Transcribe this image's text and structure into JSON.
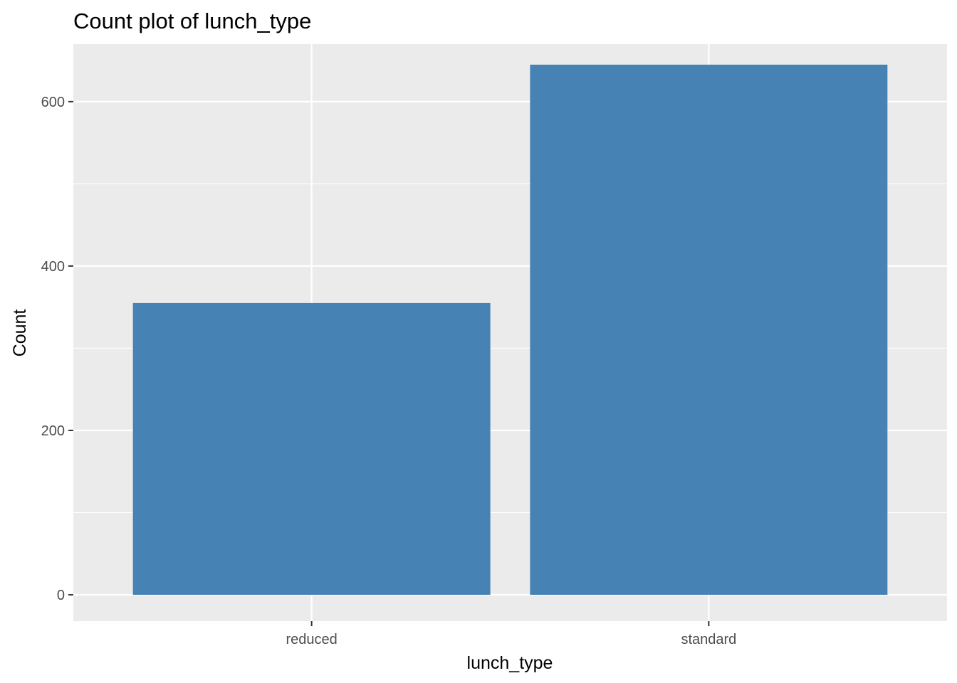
{
  "chart_data": {
    "type": "bar",
    "title": "Count plot of lunch_type",
    "xlabel": "lunch_type",
    "ylabel": "Count",
    "categories": [
      "reduced",
      "standard"
    ],
    "values": [
      355,
      645
    ],
    "ylim": [
      -32,
      670
    ],
    "yticks": [
      0,
      200,
      400,
      600
    ],
    "ytick_labels": [
      "0",
      "200",
      "400",
      "600"
    ],
    "grid": true,
    "colors": {
      "bar": "#4682b4",
      "panel": "#ebebeb",
      "grid": "#ffffff",
      "tick": "#333333"
    }
  }
}
